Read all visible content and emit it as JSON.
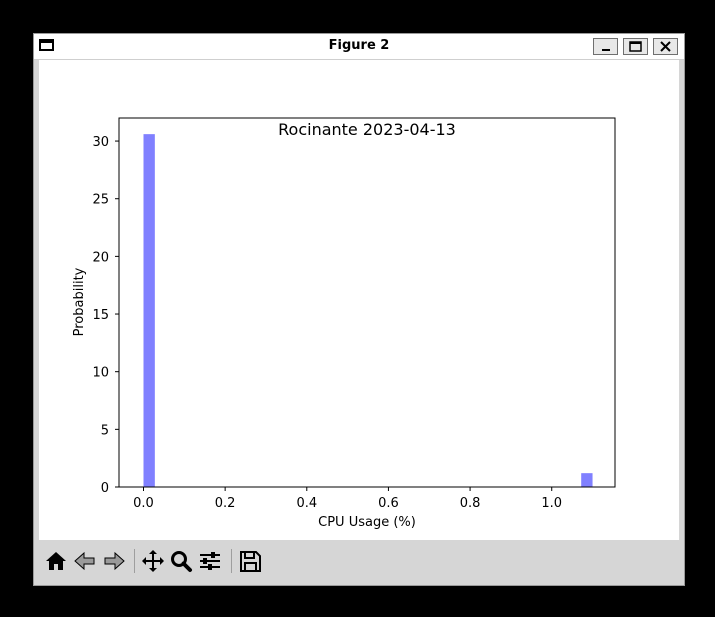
{
  "window": {
    "title": "Figure 2"
  },
  "titlebar_buttons": [
    {
      "name": "minimize-button",
      "icon": "minimize-icon"
    },
    {
      "name": "maximize-button",
      "icon": "maximize-icon"
    },
    {
      "name": "close-button",
      "icon": "close-icon"
    }
  ],
  "toolbar": {
    "buttons": [
      "home-icon",
      "back-icon",
      "forward-icon",
      "pan-icon",
      "zoom-icon",
      "configure-subplots-icon",
      "save-icon"
    ]
  },
  "chart_data": {
    "type": "bar",
    "title": "Rocinante 2023-04-13",
    "xlabel": "CPU Usage (%)",
    "ylabel": "Probability",
    "xlim": [
      -0.06,
      1.155
    ],
    "ylim": [
      0,
      32
    ],
    "xticks": [
      "0.0",
      "0.2",
      "0.4",
      "0.6",
      "0.8",
      "1.0"
    ],
    "xtick_values": [
      0.0,
      0.2,
      0.4,
      0.6,
      0.8,
      1.0
    ],
    "yticks": [
      "0",
      "5",
      "10",
      "15",
      "20",
      "25",
      "30"
    ],
    "ytick_values": [
      0,
      5,
      10,
      15,
      20,
      25,
      30
    ],
    "bar_color": "#8080ff",
    "bars": [
      {
        "x0": 0.0,
        "x1": 0.0278,
        "value": 30.6
      },
      {
        "x0": 1.0722,
        "x1": 1.1,
        "value": 1.2
      }
    ],
    "grid": false
  }
}
